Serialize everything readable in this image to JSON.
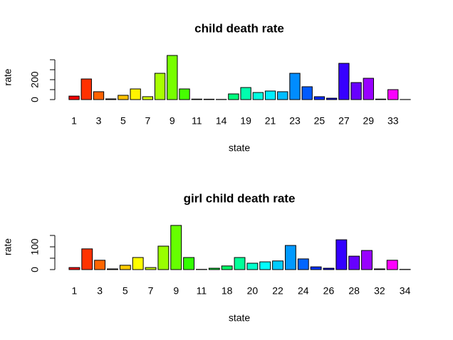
{
  "chart_data": [
    {
      "type": "bar",
      "title": "child death rate",
      "x_label": "state",
      "y_label": "rate",
      "categories": [
        "1",
        null,
        "3",
        null,
        "5",
        null,
        "7",
        null,
        "9",
        null,
        "11",
        null,
        "14",
        null,
        "19",
        null,
        "21",
        null,
        "23",
        null,
        "25",
        null,
        "27",
        null,
        "29",
        null,
        "33",
        null
      ],
      "values": [
        35,
        207,
        79,
        7,
        43,
        107,
        29,
        264,
        443,
        107,
        5,
        4,
        2,
        57,
        121,
        71,
        86,
        79,
        264,
        129,
        29,
        14,
        364,
        171,
        214,
        5,
        100,
        1
      ],
      "colors": [
        "#FF0000",
        "#FF3100",
        "#FF6200",
        "#FF9300",
        "#FFC300",
        "#FFF400",
        "#D9FF00",
        "#A8FF00",
        "#77FF00",
        "#46FF00",
        "#15FF00",
        "#00FF1C",
        "#00FF4D",
        "#00FF7E",
        "#00FFAE",
        "#00FFDF",
        "#00EEFF",
        "#00BDFF",
        "#008CFF",
        "#005BFF",
        "#002AFF",
        "#0600FF",
        "#3700FF",
        "#6800FF",
        "#9900FF",
        "#CA00FF",
        "#FB00FF",
        "#FF00D2"
      ],
      "ylim": [
        0,
        450
      ],
      "yticks": [
        0,
        {
          "value": 100,
          "label": null
        },
        200,
        {
          "value": 300,
          "label": null
        },
        {
          "value": 400,
          "label": null
        }
      ]
    },
    {
      "type": "bar",
      "title": "girl child death rate",
      "x_label": "state",
      "y_label": "rate",
      "categories": [
        "1",
        null,
        "3",
        null,
        "5",
        null,
        "7",
        null,
        "9",
        null,
        "11",
        null,
        "18",
        null,
        "20",
        null,
        "22",
        null,
        "24",
        null,
        "26",
        null,
        "28",
        null,
        "32",
        null,
        "34"
      ],
      "values": [
        9,
        91,
        41,
        3,
        19,
        53,
        9,
        103,
        194,
        53,
        1,
        6,
        16,
        53,
        28,
        34,
        38,
        106,
        47,
        12,
        6,
        131,
        59,
        84,
        3,
        41,
        1
      ],
      "colors": [
        "#FF0000",
        "#FF3300",
        "#FF6600",
        "#FF9900",
        "#FFCC00",
        "#FFFF00",
        "#CCFF00",
        "#99FF00",
        "#66FF00",
        "#33FF00",
        "#00FF00",
        "#00FF33",
        "#00FF66",
        "#00FF99",
        "#00FFCC",
        "#00FFFF",
        "#00CCFF",
        "#0099FF",
        "#0066FF",
        "#0033FF",
        "#0000FF",
        "#3300FF",
        "#6600FF",
        "#9900FF",
        "#CC00FF",
        "#FF00FF",
        "#FF00CC"
      ],
      "ylim": [
        0,
        200
      ],
      "yticks": [
        0,
        {
          "value": 50,
          "label": null
        },
        100,
        {
          "value": 150,
          "label": null
        }
      ]
    }
  ]
}
